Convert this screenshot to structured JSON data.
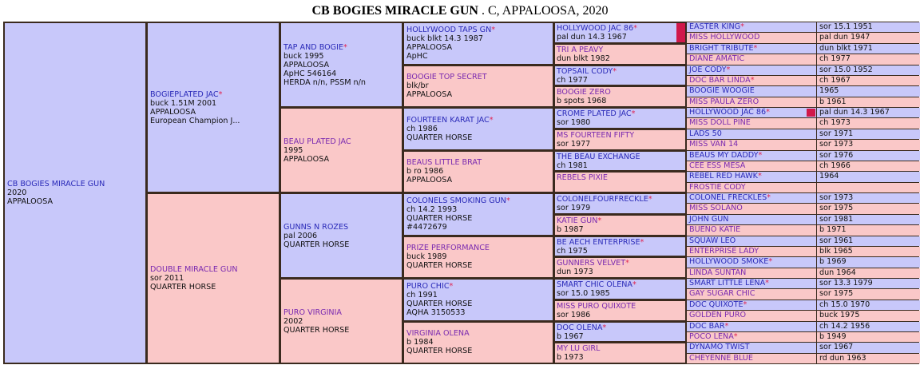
{
  "title": {
    "name": "CB BOGIES MIRACLE GUN",
    "rest": ". C, APPALOOSA, 2020"
  },
  "colors": {
    "sire_bg": "#c8c8fa",
    "dam_bg": "#fac8c8",
    "sire_text": "#2a2ab8",
    "dam_text": "#7a2ab0",
    "star": "#e0224f",
    "inbred_marker": "#d0184a",
    "border": "#3a2a1e"
  },
  "star_symbol": "*",
  "gen1": [
    {
      "name": "CB BOGIES MIRACLE GUN",
      "star": false,
      "details": [
        "2020",
        "APPALOOSA"
      ]
    }
  ],
  "gen2": [
    {
      "name": "BOGIEPLATED JAC",
      "star": true,
      "details": [
        "buck 1.51M 2001",
        "APPALOOSA",
        "European Champion J..."
      ]
    },
    {
      "name": "DOUBLE MIRACLE GUN",
      "star": false,
      "details": [
        "sor 2011",
        "QUARTER HORSE"
      ]
    }
  ],
  "gen3": [
    {
      "name": "TAP AND BOGIE",
      "star": true,
      "details": [
        "buck 1995",
        "APPALOOSA",
        "ApHC 546164",
        "HERDA n/n, PSSM n/n"
      ]
    },
    {
      "name": "BEAU PLATED JAC",
      "star": false,
      "details": [
        "1995",
        "APPALOOSA"
      ]
    },
    {
      "name": "GUNNS N ROZES",
      "star": false,
      "details": [
        "pal 2006",
        "QUARTER HORSE"
      ]
    },
    {
      "name": "PURO VIRGINIA",
      "star": false,
      "details": [
        "2002",
        "QUARTER HORSE"
      ]
    }
  ],
  "gen4": [
    {
      "name": "HOLLYWOOD TAPS GN",
      "star": true,
      "details": [
        "buck blkt 14.3 1987",
        "APPALOOSA",
        "ApHC"
      ]
    },
    {
      "name": "BOOGIE TOP SECRET",
      "star": false,
      "details": [
        "blk/br",
        "APPALOOSA"
      ]
    },
    {
      "name": "FOURTEEN KARAT JAC",
      "star": true,
      "details": [
        "ch 1986",
        "QUARTER HORSE"
      ]
    },
    {
      "name": "BEAUS LITTLE BRAT",
      "star": false,
      "details": [
        "b ro 1986",
        "APPALOOSA"
      ]
    },
    {
      "name": "COLONELS SMOKING GUN",
      "star": true,
      "details": [
        "ch 14.2 1993",
        "QUARTER HORSE",
        "#4472679"
      ]
    },
    {
      "name": "PRIZE PERFORMANCE",
      "star": false,
      "details": [
        "buck 1989",
        "QUARTER HORSE"
      ]
    },
    {
      "name": "PURO CHIC",
      "star": true,
      "details": [
        "ch 1991",
        "QUARTER HORSE",
        "AQHA 3150533"
      ]
    },
    {
      "name": "VIRGINIA OLENA",
      "star": false,
      "details": [
        "b 1984",
        "QUARTER HORSE"
      ]
    }
  ],
  "gen5": [
    {
      "name": "HOLLYWOOD JAC 86",
      "star": true,
      "details": [
        "pal dun 14.3 1967"
      ],
      "inbred": true
    },
    {
      "name": "TRI A PEAVY",
      "star": false,
      "details": [
        "dun blkt 1982"
      ]
    },
    {
      "name": "TOPSAIL CODY",
      "star": true,
      "details": [
        "ch 1977"
      ]
    },
    {
      "name": "BOOGIE ZERO",
      "star": false,
      "details": [
        "b spots 1968"
      ]
    },
    {
      "name": "CROME PLATED JAC",
      "star": true,
      "details": [
        "sor 1980"
      ]
    },
    {
      "name": "MS FOURTEEN FIFTY",
      "star": false,
      "details": [
        "sor 1977"
      ]
    },
    {
      "name": "THE BEAU EXCHANGE",
      "star": false,
      "details": [
        "ch 1981"
      ]
    },
    {
      "name": "REBELS PIXIE",
      "star": false,
      "details": []
    },
    {
      "name": "COLONELFOURFRECKLE",
      "star": true,
      "details": [
        "sor 1979"
      ]
    },
    {
      "name": "KATIE GUN",
      "star": true,
      "details": [
        "b 1987"
      ]
    },
    {
      "name": "BE AECH ENTERPRISE",
      "star": true,
      "details": [
        "ch 1975"
      ]
    },
    {
      "name": "GUNNERS VELVET",
      "star": true,
      "details": [
        "dun 1973"
      ]
    },
    {
      "name": "SMART CHIC OLENA",
      "star": true,
      "details": [
        "sor 15.0 1985"
      ]
    },
    {
      "name": "MISS PURO QUIXOTE",
      "star": false,
      "details": [
        "sor 1986"
      ]
    },
    {
      "name": "DOC OLENA",
      "star": true,
      "details": [
        "b 1967"
      ]
    },
    {
      "name": "MY LU GIRL",
      "star": false,
      "details": [
        "b 1973"
      ]
    }
  ],
  "gen6": [
    {
      "name": "EASTER KING",
      "star": true,
      "info": "sor 15.1 1951"
    },
    {
      "name": "MISS HOLLYWOOD",
      "star": false,
      "info": "pal dun 1947"
    },
    {
      "name": "BRIGHT TRIBUTE",
      "star": true,
      "info": "dun blkt 1971"
    },
    {
      "name": "DIANE AMATIC",
      "star": false,
      "info": "ch 1977"
    },
    {
      "name": "JOE CODY",
      "star": true,
      "info": "sor 15.0 1952"
    },
    {
      "name": "DOC BAR LINDA",
      "star": true,
      "info": "ch 1967"
    },
    {
      "name": "BOOGIE WOOGIE",
      "star": false,
      "info": "1965"
    },
    {
      "name": "MISS PAULA ZERO",
      "star": false,
      "info": "b 1961"
    },
    {
      "name": "HOLLYWOOD JAC 86",
      "star": true,
      "info": "pal dun 14.3 1967",
      "inbred": true
    },
    {
      "name": "MISS DOLL PINE",
      "star": false,
      "info": "ch 1973"
    },
    {
      "name": "LADS 50",
      "star": false,
      "info": "sor 1971"
    },
    {
      "name": "MISS VAN 14",
      "star": false,
      "info": "sor 1973"
    },
    {
      "name": "BEAUS MY DADDY",
      "star": true,
      "info": "sor 1976"
    },
    {
      "name": "CEE ESS MESA",
      "star": false,
      "info": "ch 1966"
    },
    {
      "name": "REBEL RED HAWK",
      "star": true,
      "info": "1964"
    },
    {
      "name": "FROSTIE CODY",
      "star": false,
      "info": ""
    },
    {
      "name": "COLONEL FRECKLES",
      "star": true,
      "info": "sor 1973"
    },
    {
      "name": "MISS SOLANO",
      "star": false,
      "info": "sor 1975"
    },
    {
      "name": "JOHN GUN",
      "star": false,
      "info": "sor 1981"
    },
    {
      "name": "BUENO KATIE",
      "star": false,
      "info": "b 1971"
    },
    {
      "name": "SQUAW LEO",
      "star": false,
      "info": "sor 1961"
    },
    {
      "name": "ENTERPRISE LADY",
      "star": false,
      "info": "blk 1965"
    },
    {
      "name": "HOLLYWOOD SMOKE",
      "star": true,
      "info": "b 1969"
    },
    {
      "name": "LINDA SUNTAN",
      "star": false,
      "info": "dun 1964"
    },
    {
      "name": "SMART LITTLE LENA",
      "star": true,
      "info": "sor 13.3 1979"
    },
    {
      "name": "GAY SUGAR CHIC",
      "star": false,
      "info": "sor 1975"
    },
    {
      "name": "DOC QUIXOTE",
      "star": true,
      "info": "ch 15.0 1970"
    },
    {
      "name": "GOLDEN PURO",
      "star": false,
      "info": "buck 1975"
    },
    {
      "name": "DOC BAR",
      "star": true,
      "info": "ch 14.2 1956"
    },
    {
      "name": "POCO LENA",
      "star": true,
      "info": "b 1949"
    },
    {
      "name": "DYNAMO TWIST",
      "star": false,
      "info": "sor 1967"
    },
    {
      "name": "CHEYENNE BLUE",
      "star": false,
      "info": "rd dun 1963"
    }
  ]
}
